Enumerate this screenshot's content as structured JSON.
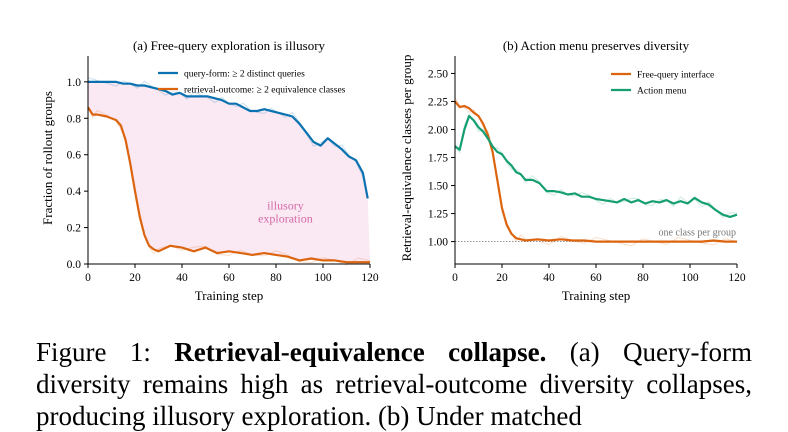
{
  "chart_data": [
    {
      "type": "line",
      "title": "(a) Free-query exploration is illusory",
      "xlabel": "Training step",
      "ylabel": "Fraction of rollout groups",
      "xlim": [
        0,
        120
      ],
      "ylim": [
        0,
        1.12
      ],
      "xticks": [
        "0",
        "20",
        "40",
        "60",
        "80",
        "100",
        "120"
      ],
      "yticks": [
        "0.0",
        "0.2",
        "0.4",
        "0.6",
        "0.8",
        "1.0"
      ],
      "legend_position": "top-center",
      "annotation": {
        "line1": "illusory",
        "line2": "exploration",
        "color": "#d46aa8"
      },
      "shade_between_series": true,
      "shade_color": "#fae8f2",
      "series": [
        {
          "name": "query-form: ≥ 2 distinct queries",
          "color": "#0a72b0",
          "x": [
            0,
            4,
            8,
            12,
            15,
            18,
            21,
            24,
            27,
            30,
            33,
            36,
            39,
            42,
            45,
            48,
            51,
            54,
            57,
            60,
            63,
            66,
            69,
            72,
            75,
            78,
            81,
            84,
            87,
            90,
            93,
            96,
            99,
            102,
            105,
            108,
            111,
            114,
            117,
            119
          ],
          "values": [
            1.0,
            1.0,
            1.0,
            1.0,
            0.99,
            0.99,
            0.98,
            0.98,
            0.97,
            0.96,
            0.95,
            0.93,
            0.94,
            0.92,
            0.92,
            0.92,
            0.92,
            0.91,
            0.9,
            0.88,
            0.88,
            0.86,
            0.84,
            0.84,
            0.85,
            0.84,
            0.83,
            0.82,
            0.81,
            0.77,
            0.72,
            0.67,
            0.65,
            0.69,
            0.66,
            0.63,
            0.59,
            0.57,
            0.5,
            0.36
          ]
        },
        {
          "name": "retrieval-outcome: ≥ 2 equivalence classes",
          "color": "#dc640f",
          "x": [
            0,
            2,
            4,
            8,
            12,
            14,
            16,
            18,
            20,
            22,
            24,
            26,
            28,
            30,
            35,
            40,
            45,
            50,
            55,
            60,
            65,
            70,
            75,
            80,
            85,
            90,
            95,
            100,
            105,
            110,
            115,
            120
          ],
          "values": [
            0.86,
            0.82,
            0.82,
            0.81,
            0.79,
            0.76,
            0.68,
            0.55,
            0.4,
            0.26,
            0.16,
            0.1,
            0.08,
            0.07,
            0.1,
            0.09,
            0.07,
            0.09,
            0.06,
            0.07,
            0.06,
            0.05,
            0.06,
            0.05,
            0.04,
            0.02,
            0.03,
            0.02,
            0.02,
            0.01,
            0.01,
            0.01
          ]
        }
      ]
    },
    {
      "type": "line",
      "title": "(b) Action menu preserves diversity",
      "xlabel": "Training step",
      "ylabel": "Retrieval-equivalence classes per group",
      "xlim": [
        0,
        120
      ],
      "ylim": [
        0.8,
        2.62
      ],
      "xticks": [
        "0",
        "20",
        "40",
        "60",
        "80",
        "100",
        "120"
      ],
      "yticks": [
        "1.00",
        "1.25",
        "1.50",
        "1.75",
        "2.00",
        "2.25",
        "2.50"
      ],
      "legend_position": "top-right",
      "reference_line": {
        "y": 1.0,
        "label": "one class per group"
      },
      "series": [
        {
          "name": "Free-query interface",
          "color": "#dc640f",
          "x": [
            0,
            2,
            4,
            6,
            8,
            10,
            12,
            14,
            16,
            18,
            20,
            22,
            24,
            26,
            28,
            30,
            35,
            40,
            45,
            50,
            55,
            60,
            65,
            70,
            75,
            80,
            85,
            90,
            95,
            100,
            105,
            110,
            115,
            120
          ],
          "values": [
            2.25,
            2.2,
            2.21,
            2.19,
            2.15,
            2.12,
            2.05,
            1.95,
            1.8,
            1.55,
            1.3,
            1.15,
            1.07,
            1.03,
            1.02,
            1.01,
            1.02,
            1.01,
            1.02,
            1.01,
            1.01,
            1.0,
            1.0,
            1.0,
            1.0,
            1.0,
            1.0,
            1.0,
            1.0,
            1.0,
            1.0,
            1.01,
            1.0,
            1.0
          ]
        },
        {
          "name": "Action menu",
          "color": "#169e73",
          "x": [
            0,
            2,
            4,
            6,
            8,
            10,
            12,
            14,
            16,
            18,
            20,
            22,
            24,
            26,
            28,
            30,
            33,
            36,
            39,
            42,
            45,
            48,
            51,
            54,
            57,
            60,
            63,
            66,
            69,
            72,
            75,
            78,
            81,
            84,
            87,
            90,
            93,
            96,
            99,
            102,
            105,
            108,
            111,
            114,
            117,
            120
          ],
          "values": [
            1.85,
            1.82,
            2.0,
            2.12,
            2.08,
            2.02,
            1.98,
            1.92,
            1.85,
            1.8,
            1.78,
            1.72,
            1.68,
            1.62,
            1.6,
            1.55,
            1.55,
            1.52,
            1.45,
            1.45,
            1.44,
            1.42,
            1.43,
            1.4,
            1.4,
            1.38,
            1.37,
            1.36,
            1.35,
            1.38,
            1.35,
            1.37,
            1.34,
            1.36,
            1.35,
            1.37,
            1.34,
            1.36,
            1.34,
            1.39,
            1.35,
            1.33,
            1.28,
            1.24,
            1.22,
            1.24
          ]
        }
      ]
    }
  ],
  "caption": {
    "prefix": "Figure 1: ",
    "bold": "Retrieval-equivalence collapse.",
    "rest": " (a) Query-form diversity remains high as retrieval-outcome diversity collapses, producing illusory exploration. (b) Under matched"
  }
}
